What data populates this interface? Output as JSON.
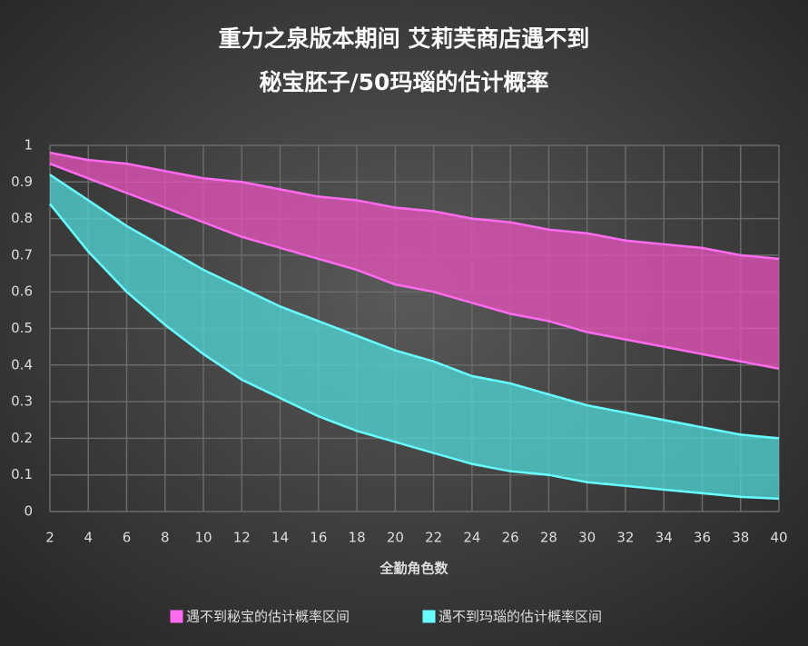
{
  "chart_data": {
    "type": "range-area",
    "title": [
      "重力之泉版本期间 艾莉芙商店遇不到",
      "秘宝胚子/50玛瑙的估计概率"
    ],
    "x_label": "全勤角色数",
    "x": [
      2,
      4,
      6,
      8,
      10,
      12,
      14,
      16,
      18,
      20,
      22,
      24,
      26,
      28,
      30,
      32,
      34,
      36,
      38,
      40
    ],
    "series": [
      {
        "name": "遇不到秘宝的估计概率区间",
        "color": "#e452b8",
        "upper": [
          0.98,
          0.96,
          0.95,
          0.93,
          0.91,
          0.9,
          0.88,
          0.86,
          0.85,
          0.83,
          0.82,
          0.8,
          0.79,
          0.77,
          0.76,
          0.74,
          0.73,
          0.72,
          0.7,
          0.69
        ],
        "lower": [
          0.95,
          0.91,
          0.87,
          0.83,
          0.79,
          0.75,
          0.72,
          0.69,
          0.66,
          0.62,
          0.6,
          0.57,
          0.54,
          0.52,
          0.49,
          0.47,
          0.45,
          0.43,
          0.41,
          0.39
        ]
      },
      {
        "name": "遇不到玛瑙的估计概率区间",
        "color": "#4fd3d3",
        "upper": [
          0.92,
          0.85,
          0.78,
          0.72,
          0.66,
          0.61,
          0.56,
          0.52,
          0.48,
          0.44,
          0.41,
          0.37,
          0.35,
          0.32,
          0.29,
          0.27,
          0.25,
          0.23,
          0.21,
          0.2
        ],
        "lower": [
          0.84,
          0.71,
          0.6,
          0.51,
          0.43,
          0.36,
          0.31,
          0.26,
          0.22,
          0.19,
          0.16,
          0.13,
          0.11,
          0.1,
          0.08,
          0.07,
          0.06,
          0.05,
          0.04,
          0.035
        ]
      }
    ],
    "xlim": [
      2,
      40
    ],
    "xticks": [
      2,
      4,
      6,
      8,
      10,
      12,
      14,
      16,
      18,
      20,
      22,
      24,
      26,
      28,
      30,
      32,
      34,
      36,
      38,
      40
    ],
    "ylim": [
      0,
      1
    ],
    "yticks": [
      0,
      0.1,
      0.2,
      0.3,
      0.4,
      0.5,
      0.6,
      0.7,
      0.8,
      0.9,
      1
    ],
    "grid": true,
    "legend": "bottom"
  }
}
